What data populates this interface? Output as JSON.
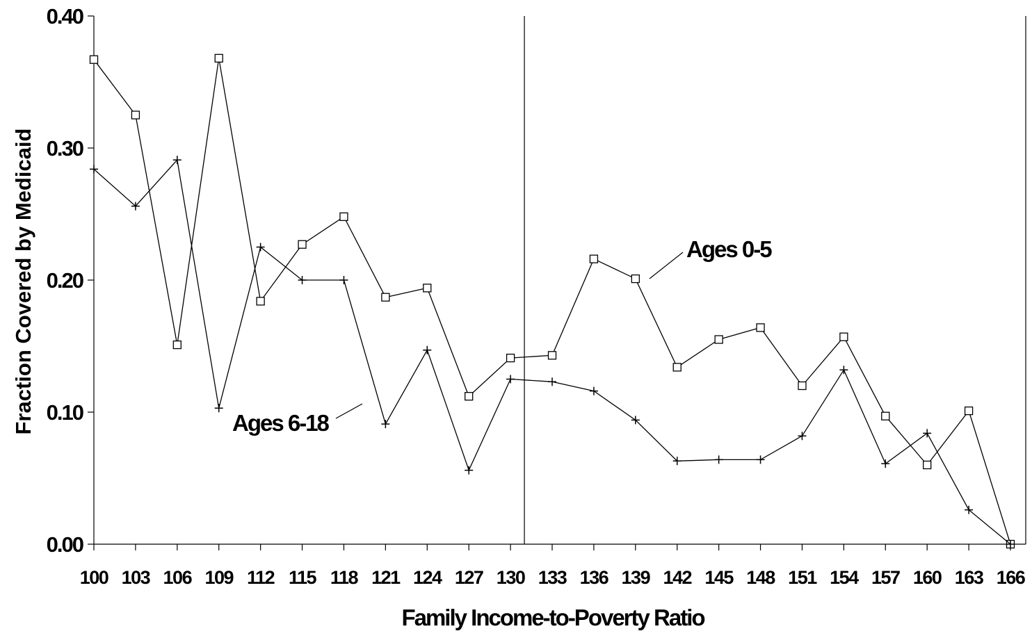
{
  "chart_data": {
    "type": "line",
    "title": "",
    "xlabel": "Family Income-to-Poverty Ratio",
    "ylabel": "Fraction Covered by Medicaid",
    "ylim": [
      0,
      0.4
    ],
    "yticks": [
      "0.00",
      "0.10",
      "0.20",
      "0.30",
      "0.40"
    ],
    "categories": [
      "100",
      "103",
      "106",
      "109",
      "112",
      "115",
      "118",
      "121",
      "124",
      "127",
      "130",
      "133",
      "136",
      "139",
      "142",
      "145",
      "148",
      "151",
      "154",
      "157",
      "160",
      "163",
      "166"
    ],
    "reference_line_x": 131,
    "grid": false,
    "legend": "none",
    "series": [
      {
        "name": "Ages 0-5",
        "marker": "square",
        "values": [
          0.367,
          0.325,
          0.151,
          0.368,
          0.184,
          0.227,
          0.248,
          0.187,
          0.194,
          0.112,
          0.141,
          0.143,
          0.216,
          0.201,
          0.134,
          0.155,
          0.164,
          0.12,
          0.157,
          0.097,
          0.06,
          0.101,
          0.0
        ]
      },
      {
        "name": "Ages 6-18",
        "marker": "plus",
        "values": [
          0.284,
          0.256,
          0.291,
          0.103,
          0.225,
          0.2,
          0.2,
          0.091,
          0.147,
          0.056,
          0.125,
          0.123,
          0.116,
          0.094,
          0.063,
          0.064,
          0.064,
          0.082,
          0.132,
          0.061,
          0.084,
          0.026,
          0.0
        ]
      }
    ],
    "annotations": [
      {
        "text": "Ages 0-5",
        "series": "Ages 0-5"
      },
      {
        "text": "Ages 6-18",
        "series": "Ages 6-18"
      }
    ]
  }
}
